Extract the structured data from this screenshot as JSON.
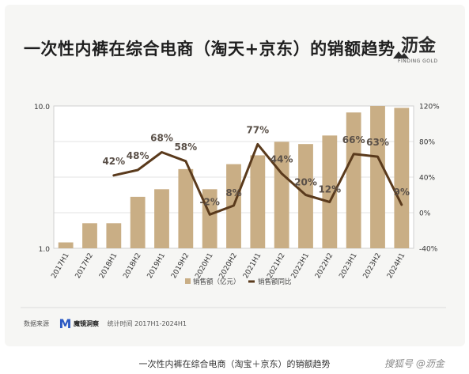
{
  "header": {
    "title": "一次性内裤在综合电商（淘天+京东）的销额趋势",
    "logo_text": "沥金",
    "logo_sub": "FINDING GOLD"
  },
  "chart_data": {
    "type": "bar",
    "categories": [
      "2017H1",
      "2017H2",
      "2018H1",
      "2018H2",
      "2019H1",
      "2019H2",
      "2020H1",
      "2020H2",
      "2021H1",
      "2021H2",
      "2022H1",
      "2022H2",
      "2023H1",
      "2023H2",
      "2024H1"
    ],
    "series": [
      {
        "name": "销售额（亿元）",
        "type": "bar",
        "axis": "left",
        "color": "#c9ae85",
        "values": [
          1.1,
          1.5,
          1.5,
          2.3,
          2.6,
          3.6,
          2.6,
          3.9,
          4.5,
          5.6,
          5.4,
          6.2,
          9.0,
          10.0,
          9.7
        ]
      },
      {
        "name": "销售额同比",
        "type": "line",
        "axis": "right",
        "color": "#5a3a1c",
        "values": [
          null,
          null,
          42,
          48,
          68,
          58,
          -2,
          8,
          77,
          44,
          20,
          12,
          66,
          63,
          9
        ],
        "labels": [
          null,
          null,
          "42%",
          "48%",
          "68%",
          "58%",
          "-2%",
          "8%",
          "77%",
          "44%",
          "20%",
          "12%",
          "66%",
          "63%",
          "9%"
        ]
      }
    ],
    "y_left": {
      "scale": "log",
      "ylim": [
        1.0,
        10.0
      ],
      "ticks": [
        1.0,
        10.0
      ],
      "tick_labels": [
        "1.0",
        "10.0"
      ]
    },
    "y_right": {
      "ylim": [
        -40,
        120
      ],
      "ticks": [
        -40,
        0,
        40,
        80,
        120
      ],
      "tick_labels": [
        "-40%",
        "0%",
        "40%",
        "80%",
        "120%"
      ]
    },
    "grid": true,
    "legend_position": "bottom"
  },
  "footer": {
    "source_label": "数据来源",
    "source_brand": "魔镜洞察",
    "period": "统计时间 2017H1-2024H1"
  },
  "caption": "一次性内裤在综合电商（淘宝＋京东）的销额趋势",
  "watermark": "搜狐号 @沥金"
}
